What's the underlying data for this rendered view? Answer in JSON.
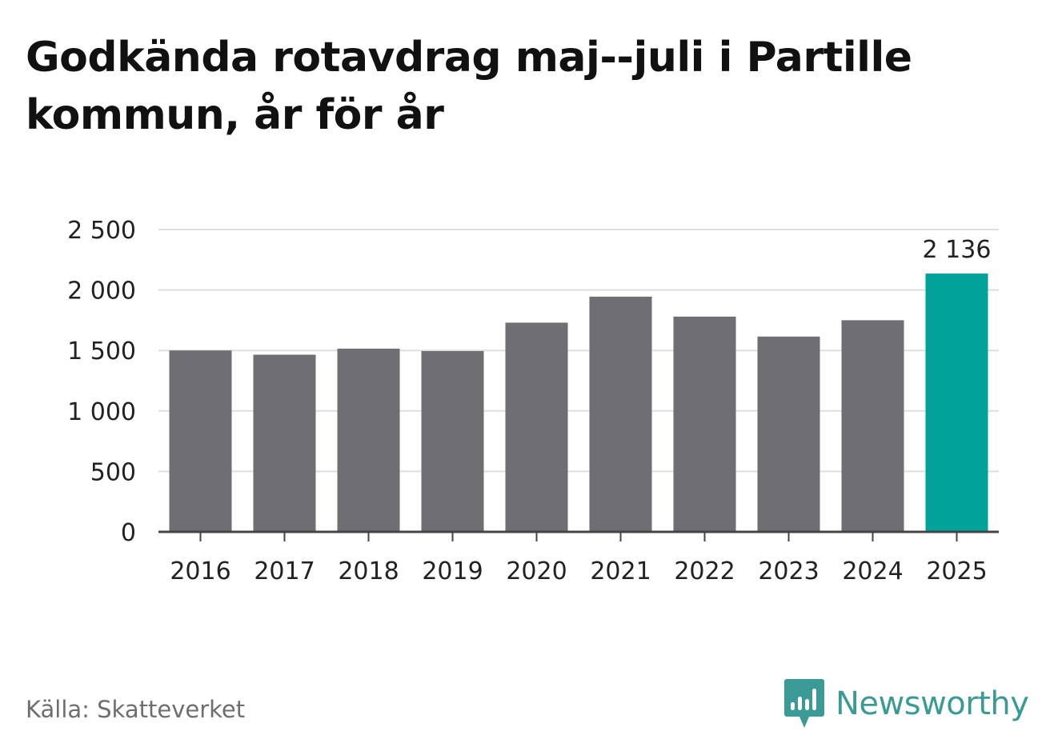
{
  "title": "Godkända rotavdrag maj--juli i Partille kommun, år för år",
  "source": "Källa: Skatteverket",
  "brand": {
    "name": "Newsworthy",
    "icon": "newsworthy-logo-icon",
    "color": "#3a9a96"
  },
  "colors": {
    "bar": "#6e6e73",
    "highlight": "#00a29a",
    "grid": "#dedede",
    "axis": "#444444"
  },
  "chart_data": {
    "type": "bar",
    "categories": [
      "2016",
      "2017",
      "2018",
      "2019",
      "2020",
      "2021",
      "2022",
      "2023",
      "2024",
      "2025"
    ],
    "values": [
      1500,
      1465,
      1515,
      1495,
      1730,
      1945,
      1780,
      1615,
      1750,
      2136
    ],
    "highlight_index": 9,
    "data_labels": [
      {
        "index": 9,
        "text": "2 136"
      }
    ],
    "ylim": [
      0,
      2500
    ],
    "y_ticks": [
      0,
      500,
      1000,
      1500,
      2000,
      2500
    ],
    "y_tick_labels": [
      "0",
      "500",
      "1 000",
      "1 500",
      "2 000",
      "2 500"
    ],
    "grid": true,
    "xlabel": "",
    "ylabel": ""
  }
}
